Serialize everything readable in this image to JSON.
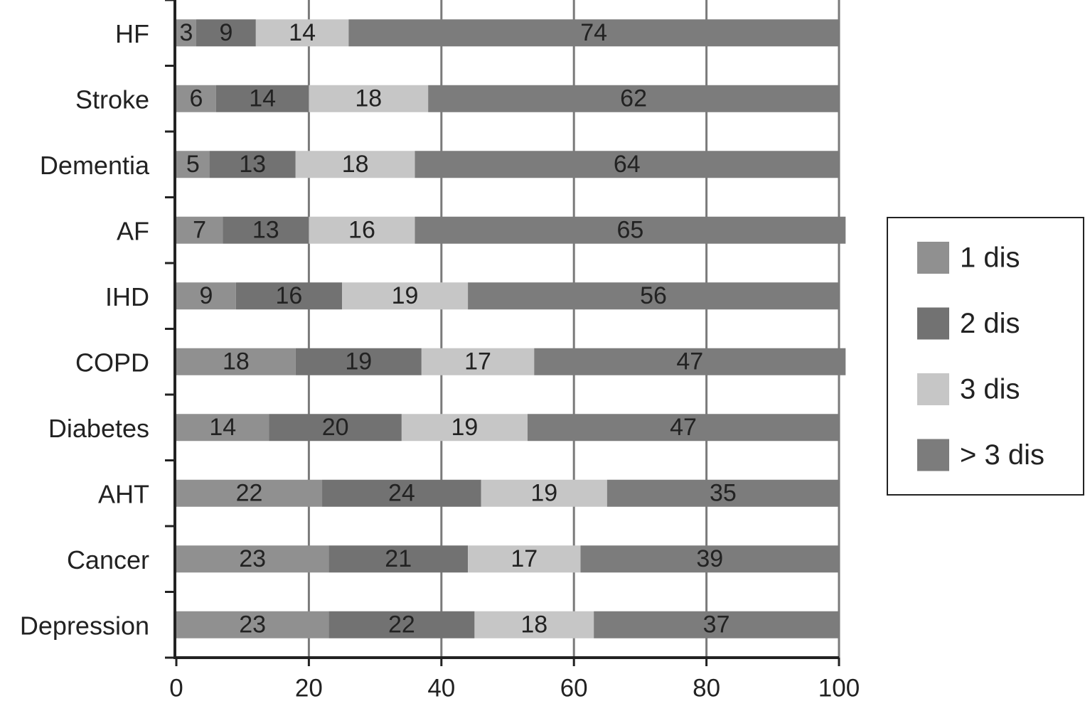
{
  "chart_data": {
    "type": "stacked-bar",
    "orientation": "horizontal",
    "categories": [
      "HF",
      "Stroke",
      "Dementia",
      "AF",
      "IHD",
      "COPD",
      "Diabetes",
      "AHT",
      "Cancer",
      "Depression"
    ],
    "series": [
      {
        "name": "1 dis",
        "color": "#909090",
        "values": [
          3,
          6,
          5,
          7,
          9,
          18,
          14,
          22,
          23,
          23
        ]
      },
      {
        "name": "2 dis",
        "color": "#727272",
        "values": [
          9,
          14,
          13,
          13,
          16,
          19,
          20,
          24,
          21,
          22
        ]
      },
      {
        "name": "3 dis",
        "color": "#c6c6c6",
        "values": [
          14,
          18,
          18,
          16,
          19,
          17,
          19,
          19,
          17,
          18
        ]
      },
      {
        "name": "> 3 dis",
        "color": "#7c7c7c",
        "values": [
          74,
          62,
          64,
          65,
          56,
          47,
          47,
          35,
          39,
          37
        ]
      }
    ],
    "xlim": [
      0,
      100
    ],
    "xticks": [
      0,
      20,
      40,
      60,
      80,
      100
    ],
    "grid": true,
    "legend": "right"
  }
}
